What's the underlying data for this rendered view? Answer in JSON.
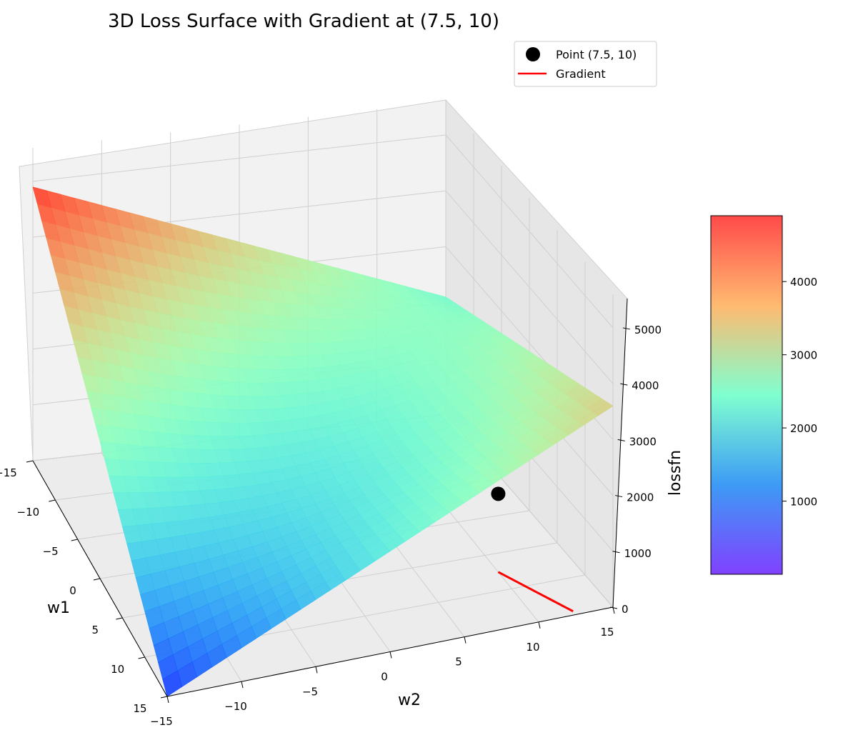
{
  "chart_data": {
    "type": "surface3d",
    "title": "3D Loss Surface with Gradient at (7.5, 10)",
    "xlabel": "w1",
    "ylabel": "w2",
    "zlabel": "lossfn",
    "xlim": [
      -15,
      15
    ],
    "ylim": [
      -15,
      15
    ],
    "zlim": [
      0,
      5000
    ],
    "x_ticks": [
      -15,
      -10,
      -5,
      0,
      5,
      10,
      15
    ],
    "y_ticks": [
      -15,
      -10,
      -5,
      0,
      5,
      10,
      15
    ],
    "z_ticks": [
      0,
      1000,
      2000,
      3000,
      4000,
      5000
    ],
    "colormap": "rainbow",
    "surface": {
      "w1_range": [
        -15,
        15
      ],
      "w2_range": [
        -15,
        15
      ],
      "corner_values": [
        {
          "w1": -15,
          "w2": -15,
          "loss": 4900
        },
        {
          "w1": -15,
          "w2": 15,
          "loss": 2100
        },
        {
          "w1": 15,
          "w2": -15,
          "loss": 0
        },
        {
          "w1": 15,
          "w2": 15,
          "loss": 3600
        }
      ],
      "minimum": {
        "w1": 15,
        "w2": -15,
        "loss": 0
      }
    },
    "point": {
      "name": "Point (7.5, 10)",
      "w1": 7.5,
      "w2": 10,
      "loss": 1400,
      "color": "#000000"
    },
    "gradient": {
      "name": "Gradient",
      "from": {
        "w1": 7.5,
        "w2": 10
      },
      "to": {
        "w1": 14.5,
        "w2": 12.5
      },
      "loss": 0,
      "color": "#ff0000"
    },
    "colorbar": {
      "ticks": [
        1000,
        2000,
        3000,
        4000
      ],
      "range": [
        0,
        4900
      ]
    },
    "legend": {
      "position": "top-right",
      "entries": [
        {
          "label": "Point (7.5, 10)",
          "marker": "circle",
          "color": "#000000"
        },
        {
          "label": "Gradient",
          "marker": "line",
          "color": "#ff0000"
        }
      ]
    }
  }
}
